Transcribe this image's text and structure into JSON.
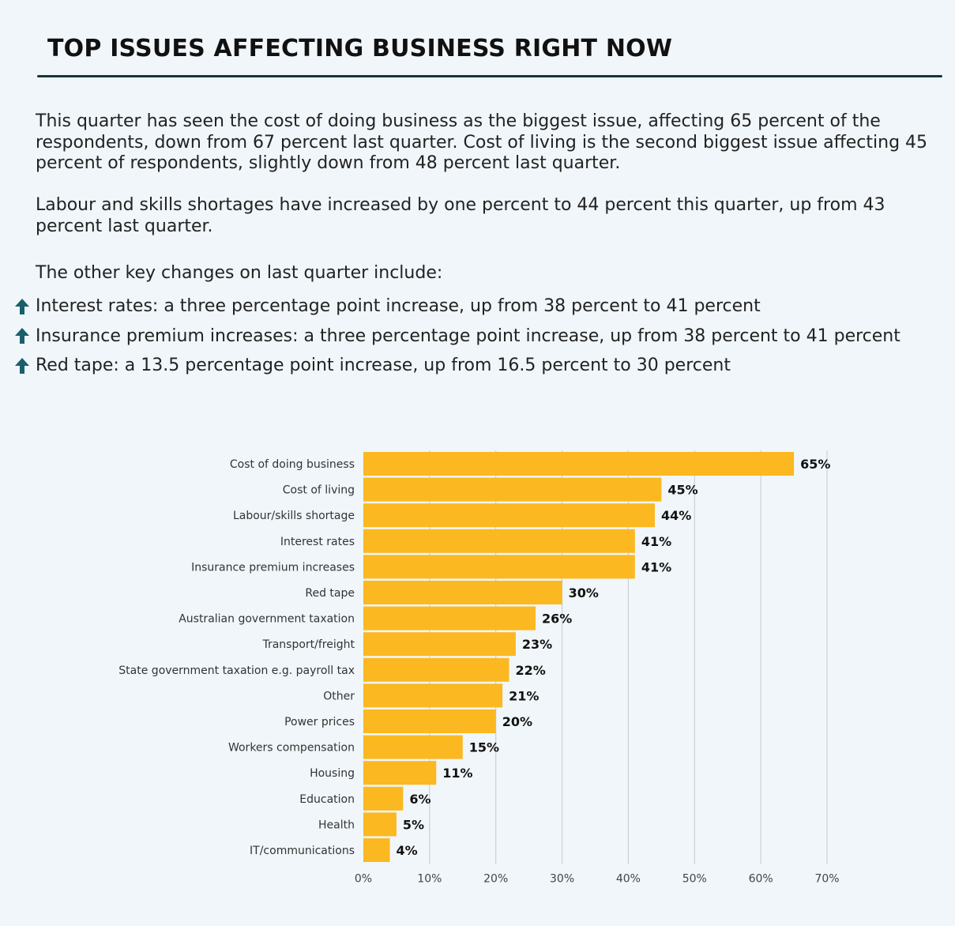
{
  "header": {
    "title": "TOP ISSUES AFFECTING BUSINESS RIGHT NOW"
  },
  "body": {
    "intro": "This quarter has seen the cost of doing business as the biggest issue, affecting 65 percent of the respondents, down from 67 percent last quarter. Cost of living is the second biggest issue affecting 45 percent of respondents, slightly down from 48 percent last quarter.",
    "labour": "Labour and skills shortages have increased by one percent to 44 percent this quarter, up from 43 percent last quarter.",
    "changes_lead": "The other key changes on last quarter include:",
    "changes": [
      "Interest rates: a three percentage point increase, up from 38 percent to 41 percent",
      "Insurance premium increases: a three percentage point increase, up from 38 percent to 41 percent",
      "Red tape: a 13.5 percentage point increase, up from 16.5 percent to 30 percent"
    ],
    "arrow_icon": "arrow-up-icon",
    "arrow_color": "#1a5f6b"
  },
  "chart_data": {
    "type": "bar",
    "orientation": "horizontal",
    "categories": [
      "Cost of doing business",
      "Cost of living",
      "Labour/skills shortage",
      "Interest rates",
      "Insurance premium increases",
      "Red tape",
      "Australian government taxation",
      "Transport/freight",
      "State government taxation e.g. payroll tax",
      "Other",
      "Power prices",
      "Workers compensation",
      "Housing",
      "Education",
      "Health",
      "IT/communications"
    ],
    "values": [
      65,
      45,
      44,
      41,
      41,
      30,
      26,
      23,
      22,
      21,
      20,
      15,
      11,
      6,
      5,
      4
    ],
    "value_labels": [
      "65%",
      "45%",
      "44%",
      "41%",
      "41%",
      "30%",
      "26%",
      "23%",
      "22%",
      "21%",
      "20%",
      "15%",
      "11%",
      "6%",
      "5%",
      "4%"
    ],
    "xlim": [
      0,
      70
    ],
    "xticks": [
      0,
      10,
      20,
      30,
      40,
      50,
      60,
      70
    ],
    "xtick_labels": [
      "0%",
      "10%",
      "20%",
      "30%",
      "40%",
      "50%",
      "60%",
      "70%"
    ],
    "grid": "vertical",
    "bar_color": "#fbb820",
    "title": "",
    "xlabel": "",
    "ylabel": ""
  }
}
